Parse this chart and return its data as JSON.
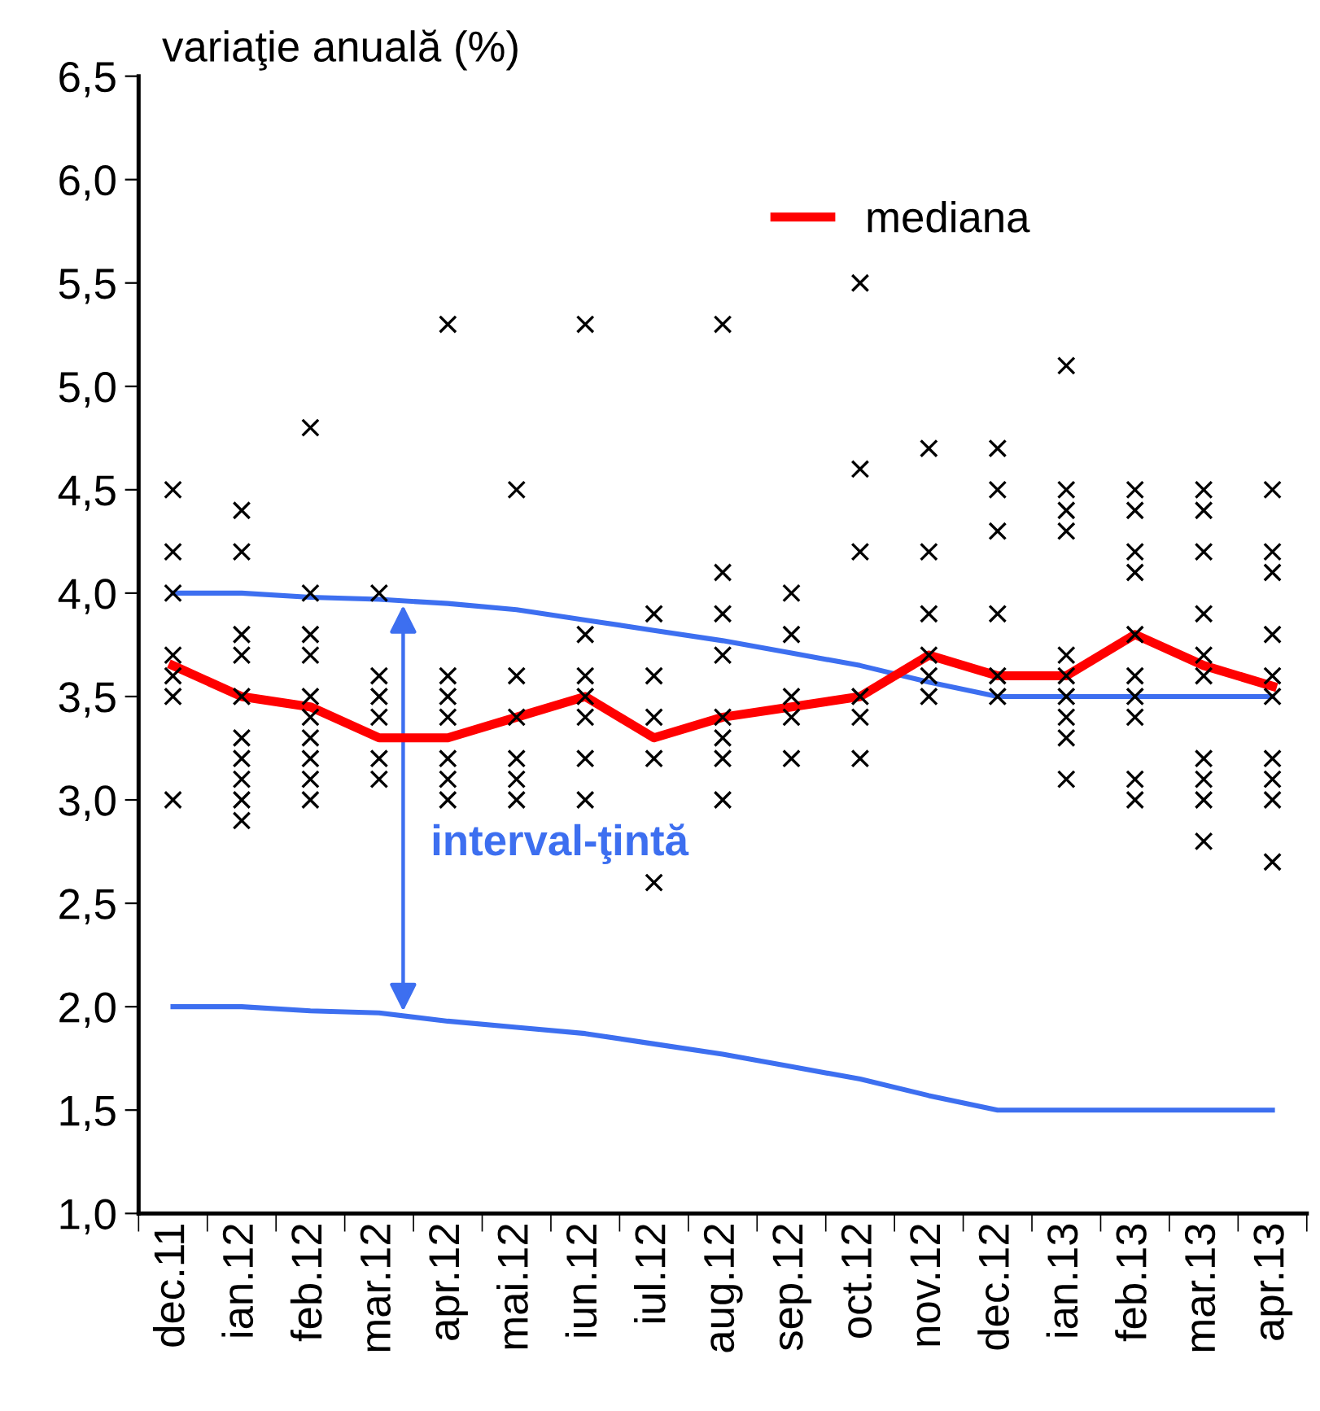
{
  "chart_data": {
    "type": "line",
    "ylabel": "variaţie anuală (%)",
    "categories": [
      "dec.11",
      "ian.12",
      "feb.12",
      "mar.12",
      "apr.12",
      "mai.12",
      "iun.12",
      "iul.12",
      "aug.12",
      "sep.12",
      "oct.12",
      "nov.12",
      "dec.12",
      "ian.13",
      "feb.13",
      "mar.13",
      "apr.13"
    ],
    "series": [
      {
        "type": "scatter",
        "color": "#000000",
        "marker": "cross",
        "x": [
          "dec.11",
          "dec.11",
          "dec.11",
          "dec.11",
          "dec.11",
          "dec.11",
          "dec.11",
          "ian.12",
          "ian.12",
          "ian.12",
          "ian.12",
          "ian.12",
          "ian.12",
          "ian.12",
          "ian.12",
          "ian.12",
          "ian.12",
          "feb.12",
          "feb.12",
          "feb.12",
          "feb.12",
          "feb.12",
          "feb.12",
          "feb.12",
          "feb.12",
          "feb.12",
          "feb.12",
          "mar.12",
          "mar.12",
          "mar.12",
          "mar.12",
          "mar.12",
          "mar.12",
          "apr.12",
          "apr.12",
          "apr.12",
          "apr.12",
          "apr.12",
          "apr.12",
          "apr.12",
          "mai.12",
          "mai.12",
          "mai.12",
          "mai.12",
          "mai.12",
          "mai.12",
          "iun.12",
          "iun.12",
          "iun.12",
          "iun.12",
          "iun.12",
          "iun.12",
          "iun.12",
          "iul.12",
          "iul.12",
          "iul.12",
          "iul.12",
          "iul.12",
          "aug.12",
          "aug.12",
          "aug.12",
          "aug.12",
          "aug.12",
          "aug.12",
          "aug.12",
          "aug.12",
          "sep.12",
          "sep.12",
          "sep.12",
          "sep.12",
          "sep.12",
          "oct.12",
          "oct.12",
          "oct.12",
          "oct.12",
          "oct.12",
          "oct.12",
          "nov.12",
          "nov.12",
          "nov.12",
          "nov.12",
          "nov.12",
          "nov.12",
          "dec.12",
          "dec.12",
          "dec.12",
          "dec.12",
          "dec.12",
          "dec.12",
          "ian.13",
          "ian.13",
          "ian.13",
          "ian.13",
          "ian.13",
          "ian.13",
          "ian.13",
          "ian.13",
          "ian.13",
          "ian.13",
          "feb.13",
          "feb.13",
          "feb.13",
          "feb.13",
          "feb.13",
          "feb.13",
          "feb.13",
          "feb.13",
          "feb.13",
          "feb.13",
          "mar.13",
          "mar.13",
          "mar.13",
          "mar.13",
          "mar.13",
          "mar.13",
          "mar.13",
          "mar.13",
          "mar.13",
          "mar.13",
          "apr.13",
          "apr.13",
          "apr.13",
          "apr.13",
          "apr.13",
          "apr.13",
          "apr.13",
          "apr.13",
          "apr.13",
          "apr.13"
        ],
        "values": [
          4.5,
          4.2,
          4.0,
          3.7,
          3.6,
          3.5,
          3.0,
          4.4,
          4.2,
          3.8,
          3.7,
          3.5,
          3.3,
          3.2,
          3.1,
          3.0,
          2.9,
          4.8,
          4.0,
          3.8,
          3.7,
          3.5,
          3.4,
          3.3,
          3.2,
          3.1,
          3.0,
          4.0,
          3.6,
          3.5,
          3.4,
          3.2,
          3.1,
          5.3,
          3.6,
          3.5,
          3.4,
          3.2,
          3.1,
          3.0,
          4.5,
          3.6,
          3.4,
          3.2,
          3.1,
          3.0,
          5.3,
          3.8,
          3.6,
          3.5,
          3.4,
          3.2,
          3.0,
          3.9,
          3.6,
          3.4,
          3.2,
          2.6,
          5.3,
          4.1,
          3.9,
          3.7,
          3.4,
          3.3,
          3.2,
          3.0,
          4.0,
          3.8,
          3.5,
          3.4,
          3.2,
          5.5,
          4.6,
          4.2,
          3.5,
          3.4,
          3.2,
          4.7,
          4.2,
          3.9,
          3.7,
          3.6,
          3.5,
          4.7,
          4.5,
          4.3,
          3.9,
          3.6,
          3.5,
          5.1,
          4.5,
          4.4,
          4.3,
          3.7,
          3.6,
          3.5,
          3.4,
          3.3,
          3.1,
          4.5,
          4.4,
          4.2,
          4.1,
          3.8,
          3.6,
          3.5,
          3.4,
          3.1,
          3.0,
          4.5,
          4.4,
          4.2,
          3.9,
          3.7,
          3.6,
          3.2,
          3.1,
          3.0,
          2.8,
          4.5,
          4.2,
          4.1,
          3.8,
          3.6,
          3.5,
          3.2,
          3.1,
          3.0,
          2.7
        ]
      },
      {
        "color": "#3d6ff0",
        "values": [
          4.0,
          4.0,
          3.98,
          3.97,
          3.95,
          3.92,
          3.87,
          3.82,
          3.77,
          3.71,
          3.65,
          3.57,
          3.5,
          3.5,
          3.5,
          3.5,
          3.5
        ]
      },
      {
        "color": "#3d6ff0",
        "values": [
          2.0,
          2.0,
          1.98,
          1.97,
          1.93,
          1.9,
          1.87,
          1.82,
          1.77,
          1.71,
          1.65,
          1.57,
          1.5,
          1.5,
          1.5,
          1.5,
          1.5
        ]
      },
      {
        "name": "mediana",
        "color": "#ff0000",
        "values": [
          3.65,
          3.5,
          3.45,
          3.3,
          3.3,
          3.4,
          3.5,
          3.3,
          3.4,
          3.45,
          3.5,
          3.7,
          3.6,
          3.6,
          3.8,
          3.65,
          3.55
        ]
      }
    ],
    "annotations": [
      "interval-ţintă"
    ],
    "ylim": [
      1.0,
      6.5
    ],
    "yticks": [
      {
        "value": 1.0,
        "label": "1,0"
      },
      {
        "value": 1.5,
        "label": "1,5"
      },
      {
        "value": 2.0,
        "label": "2,0"
      },
      {
        "value": 2.5,
        "label": "2,5"
      },
      {
        "value": 3.0,
        "label": "3,0"
      },
      {
        "value": 3.5,
        "label": "3,5"
      },
      {
        "value": 4.0,
        "label": "4,0"
      },
      {
        "value": 4.5,
        "label": "4,5"
      },
      {
        "value": 5.0,
        "label": "5,0"
      },
      {
        "value": 5.5,
        "label": "5,5"
      },
      {
        "value": 6.0,
        "label": "6,0"
      },
      {
        "value": 6.5,
        "label": "6,5"
      }
    ],
    "legend": "top right",
    "grid": false
  }
}
